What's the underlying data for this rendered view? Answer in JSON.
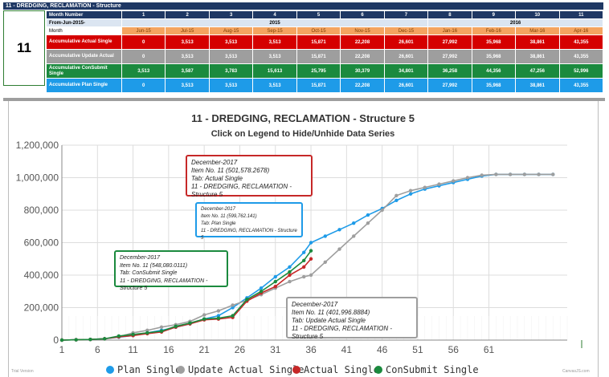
{
  "table": {
    "title": "11 - DREDGING, RECLAMATION - Structure",
    "item_no": "11",
    "labels": {
      "month_number": "Month Number",
      "from": "From-Jun-2015-",
      "month": "Month",
      "actual": "Accumulative Actual Single",
      "update": "Accumulative Update Actual",
      "consubmit": "Accumulative ConSubmit Single",
      "plan": "Accumulative Plan Single"
    },
    "year_2015": "2015",
    "year_2016": "2016",
    "month_numbers": [
      "1",
      "2",
      "3",
      "4",
      "5",
      "6",
      "7",
      "8",
      "9",
      "10",
      "11"
    ],
    "months": [
      "Jun-15",
      "Jul-15",
      "Aug-15",
      "Sep-15",
      "Oct-15",
      "Nov-15",
      "Dec-15",
      "Jan-16",
      "Feb-16",
      "Mar-16",
      "Apr-16"
    ],
    "actual": [
      "0",
      "3,513",
      "3,513",
      "3,513",
      "15,871",
      "22,208",
      "26,601",
      "27,992",
      "35,968",
      "38,861",
      "43,355"
    ],
    "update": [
      "0",
      "3,513",
      "3,513",
      "3,513",
      "15,871",
      "22,208",
      "26,601",
      "27,992",
      "35,968",
      "38,861",
      "43,355"
    ],
    "consubmit": [
      "3,513",
      "3,587",
      "3,783",
      "15,613",
      "25,795",
      "30,379",
      "34,801",
      "36,258",
      "44,356",
      "47,256",
      "52,996"
    ],
    "plan": [
      "0",
      "3,513",
      "3,513",
      "3,513",
      "15,871",
      "22,208",
      "26,601",
      "27,992",
      "35,968",
      "38,861",
      "43,355"
    ]
  },
  "chart_data": {
    "type": "line",
    "title": "11 - DREDGING, RECLAMATION - Structure 5",
    "subtitle": "Click on Legend to Hide/Unhide Data Series",
    "xlim": [
      1,
      72
    ],
    "ylim": [
      0,
      1200000
    ],
    "x_ticks": [
      "1",
      "6",
      "11",
      "16",
      "21",
      "26",
      "31",
      "36",
      "41",
      "46",
      "51",
      "56",
      "61"
    ],
    "y_ticks": [
      "0",
      "200,000",
      "400,000",
      "600,000",
      "800,000",
      "1,000,000",
      "1,200,000"
    ],
    "grid": true,
    "legend_position": "bottom",
    "watermark_left": "Trial Version",
    "watermark_right": "CanvasJS.com",
    "series": [
      {
        "name": "Plan Single",
        "color": "#1e9be8",
        "x": [
          1,
          3,
          5,
          7,
          9,
          11,
          13,
          15,
          17,
          19,
          21,
          23,
          25,
          27,
          29,
          31,
          33,
          35,
          36,
          38,
          40,
          42,
          44,
          46,
          48,
          50,
          52,
          54,
          56,
          58,
          60,
          62,
          64,
          66,
          68,
          70
        ],
        "y": [
          0,
          2000,
          4000,
          8000,
          18000,
          28000,
          45000,
          60000,
          80000,
          100000,
          130000,
          150000,
          200000,
          260000,
          320000,
          390000,
          450000,
          540000,
          600000,
          640000,
          680000,
          720000,
          770000,
          810000,
          860000,
          900000,
          930000,
          950000,
          970000,
          990000,
          1010000,
          1020000,
          1020000,
          1020000,
          1020000,
          1020000
        ]
      },
      {
        "name": "Update Actual Single",
        "color": "#9e9e9e",
        "x": [
          1,
          3,
          5,
          7,
          9,
          11,
          13,
          15,
          17,
          19,
          21,
          23,
          25,
          27,
          29,
          31,
          33,
          35,
          36,
          38,
          40,
          42,
          44,
          46,
          48,
          50,
          52,
          54,
          56,
          58,
          60,
          62,
          64,
          66,
          68,
          70
        ],
        "y": [
          0,
          2000,
          4000,
          8000,
          20000,
          45000,
          60000,
          80000,
          95000,
          115000,
          155000,
          180000,
          215000,
          245000,
          280000,
          320000,
          360000,
          390000,
          400000,
          480000,
          560000,
          640000,
          720000,
          800000,
          890000,
          920000,
          940000,
          960000,
          980000,
          1000000,
          1015000,
          1020000,
          1020000,
          1020000,
          1020000,
          1020000
        ]
      },
      {
        "name": "Actual Single",
        "color": "#c62828",
        "x": [
          1,
          3,
          5,
          7,
          9,
          11,
          13,
          15,
          17,
          19,
          21,
          23,
          25,
          27,
          29,
          31,
          33,
          35,
          36
        ],
        "y": [
          0,
          2000,
          4000,
          8000,
          20000,
          28000,
          40000,
          50000,
          80000,
          100000,
          125000,
          130000,
          140000,
          240000,
          290000,
          330000,
          400000,
          450000,
          500000
        ]
      },
      {
        "name": "ConSubmit Single",
        "color": "#1b8a3e",
        "x": [
          1,
          3,
          5,
          7,
          9,
          11,
          13,
          15,
          17,
          19,
          21,
          23,
          25,
          27,
          29,
          31,
          33,
          35,
          36
        ],
        "y": [
          0,
          2000,
          4000,
          8000,
          25000,
          35000,
          45000,
          55000,
          85000,
          105000,
          130000,
          135000,
          150000,
          250000,
          300000,
          360000,
          420000,
          490000,
          550000
        ]
      }
    ],
    "tooltips": [
      {
        "id": "actual",
        "lines": [
          "December-2017",
          "Item No. 11 (501,578.2678)",
          "Tab: Actual Single",
          "11 - DREDGING, RECLAMATION - Structure 5"
        ]
      },
      {
        "id": "plan",
        "lines": [
          "December-2017",
          "Item No. 11 (599,762.141)",
          "Tab: Plan Single",
          "11 - DREDGING, RECLAMATION - Structure 5"
        ]
      },
      {
        "id": "consubmit",
        "lines": [
          "December-2017",
          "Item No. 11 (548,080.0111)",
          "Tab: ConSubmit Single",
          "11 - DREDGING, RECLAMATION - Structure 5"
        ]
      },
      {
        "id": "update",
        "lines": [
          "December-2017",
          "Item No. 11 (401,996.8884)",
          "Tab: Update Actual Single",
          "11 - DREDGING, RECLAMATION - Structure 5"
        ]
      }
    ]
  }
}
